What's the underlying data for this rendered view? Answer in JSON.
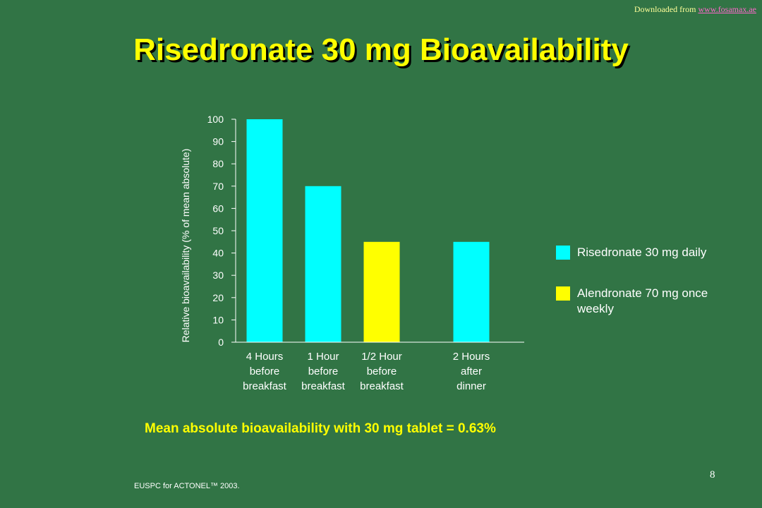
{
  "source": {
    "prefix": "Downloaded from ",
    "link": "www.fosamax.ae"
  },
  "title": "Risedronate 30 mg Bioavailability",
  "subtitle": "Mean absolute bioavailability with 30 mg tablet = 0.63%",
  "footer": "EUSPC for ACTONEL™ 2003.",
  "slide_number": "8",
  "colors": {
    "background": "#317445",
    "risedronate": "#00ffff",
    "alendronate": "#ffff00",
    "title": "#ffff00"
  },
  "legend": [
    {
      "label": "Risedronate 30 mg daily",
      "color": "#00ffff"
    },
    {
      "label": "Alendronate 70 mg once weekly",
      "color": "#ffff00"
    }
  ],
  "chart_data": {
    "type": "bar",
    "title": "",
    "ylabel": "Relative bioavailability (% of mean absolute)",
    "xlabel": "",
    "ylim": [
      0,
      100
    ],
    "yticks": [
      0,
      10,
      20,
      30,
      40,
      50,
      60,
      70,
      80,
      90,
      100
    ],
    "grid": false,
    "legend_position": "right",
    "categories": [
      [
        "4 Hours",
        "before",
        "breakfast"
      ],
      [
        "1 Hour",
        "before",
        "breakfast"
      ],
      [
        "1/2 Hour",
        "before",
        "breakfast"
      ],
      [
        "2 Hours",
        "after",
        "dinner"
      ]
    ],
    "values": [
      100,
      70,
      45,
      45
    ],
    "bar_series": [
      "Risedronate 30 mg daily",
      "Risedronate 30 mg daily",
      "Alendronate 70 mg once weekly",
      "Risedronate 30 mg daily"
    ],
    "bar_colors": [
      "#00ffff",
      "#00ffff",
      "#ffff00",
      "#00ffff"
    ]
  }
}
